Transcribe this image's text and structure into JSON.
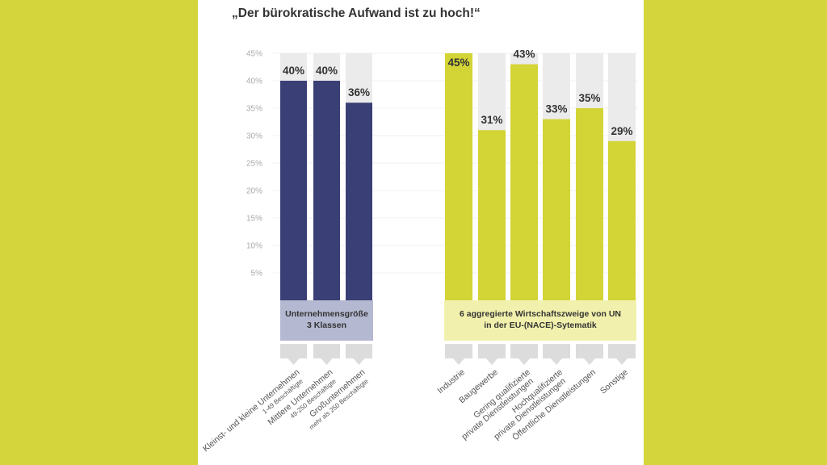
{
  "chart_data": {
    "type": "bar",
    "title": "„Der bürokratische Aufwand ist zu hoch!“",
    "ylim": [
      0,
      45
    ],
    "yticks": [
      "5%",
      "10%",
      "15%",
      "20%",
      "25%",
      "30%",
      "35%",
      "40%",
      "45%"
    ],
    "grid": true,
    "groups": [
      {
        "name_lines": [
          "Unternehmensgröße",
          "3 Klassen"
        ],
        "color": "#3a3f75",
        "box_color": "#b4b8d0",
        "categories": [
          {
            "line1": "Kleinst- und kleine Unternehmen",
            "line2": "1-49 Beschäftigte"
          },
          {
            "line1": "Mittlere Unternehmen",
            "line2": "49-250 Beschäftigte"
          },
          {
            "line1": "Großunternehmen",
            "line2": "mehr als 250 Beschäftigte"
          }
        ],
        "values": [
          40,
          40,
          36
        ],
        "labels": [
          "40%",
          "40%",
          "36%"
        ]
      },
      {
        "name_lines": [
          "6 aggregierte Wirtschaftszweige von UN",
          "in der EU-(NACE)-Sytematik"
        ],
        "color": "#d3d436",
        "box_color": "#f1f1ad",
        "categories": [
          {
            "line1": "Industrie",
            "line2": ""
          },
          {
            "line1": "Baugewerbe",
            "line2": ""
          },
          {
            "line1": "Gering qualifizierte",
            "line2": "private Dienstleistungen"
          },
          {
            "line1": "Hochqualifizierte",
            "line2": "private Dienstleistungen"
          },
          {
            "line1": "Öffentliche Dienstleistungen",
            "line2": ""
          },
          {
            "line1": "Sonstige",
            "line2": ""
          }
        ],
        "values": [
          45,
          31,
          43,
          33,
          35,
          29
        ],
        "labels": [
          "45%",
          "31%",
          "43%",
          "33%",
          "35%",
          "29%"
        ]
      }
    ]
  }
}
